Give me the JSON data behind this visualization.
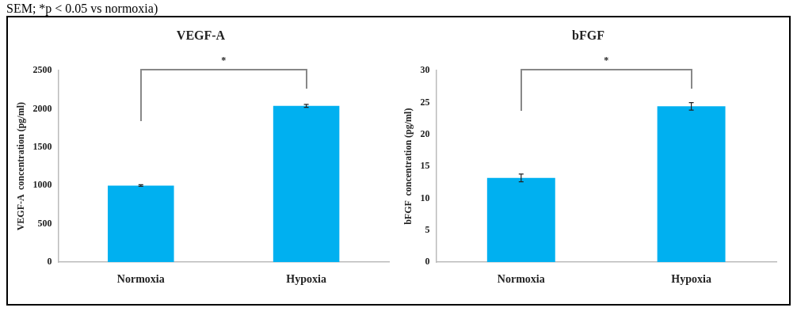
{
  "chart_data": [
    {
      "type": "bar",
      "title": "VEGF-A",
      "ylabel": "VEGF-A  concentration (pg/ml)",
      "categories": [
        "Normoxia",
        "Hypoxia"
      ],
      "values": [
        1000,
        2040
      ],
      "errors": [
        10,
        20
      ],
      "color": "#00b0f0",
      "ylim": [
        0,
        2500
      ],
      "yticks": [
        0,
        500,
        1000,
        1500,
        2000,
        2500
      ],
      "grid": false,
      "legend": false,
      "annotations": [
        "SEM; *p < 0.05 vs normoxia)",
        "*"
      ]
    },
    {
      "type": "bar",
      "title": "bFGF",
      "ylabel": "bFGF  concentration (pg/ml)",
      "categories": [
        "Normoxia",
        "Hypoxia"
      ],
      "values": [
        13.2,
        24.4
      ],
      "errors": [
        0.6,
        0.6
      ],
      "color": "#00b0f0",
      "ylim": [
        0,
        30
      ],
      "yticks": [
        0,
        5,
        10,
        15,
        20,
        25,
        30
      ],
      "grid": false,
      "legend": false,
      "annotations": [
        "*"
      ]
    }
  ]
}
